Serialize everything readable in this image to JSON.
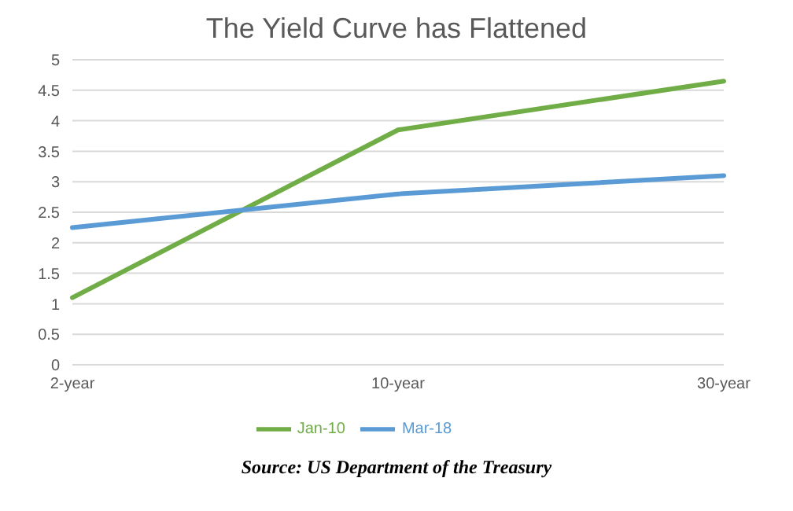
{
  "chart_data": {
    "type": "line",
    "title": "The Yield Curve has Flattened",
    "categories": [
      "2-year",
      "10-year",
      "30-year"
    ],
    "series": [
      {
        "name": "Jan-10",
        "color": "#70ad47",
        "values": [
          1.1,
          3.85,
          4.65
        ]
      },
      {
        "name": "Mar-18",
        "color": "#5b9bd5",
        "values": [
          2.25,
          2.8,
          3.1
        ]
      }
    ],
    "ylim": [
      0,
      5
    ],
    "yticks": [
      0,
      0.5,
      1,
      1.5,
      2,
      2.5,
      3,
      3.5,
      4,
      4.5,
      5
    ],
    "grid": "y",
    "legend": "bottom",
    "marker": "none",
    "line_style": "solid",
    "annotations": [
      "Source: US Department of the Treasury"
    ]
  }
}
